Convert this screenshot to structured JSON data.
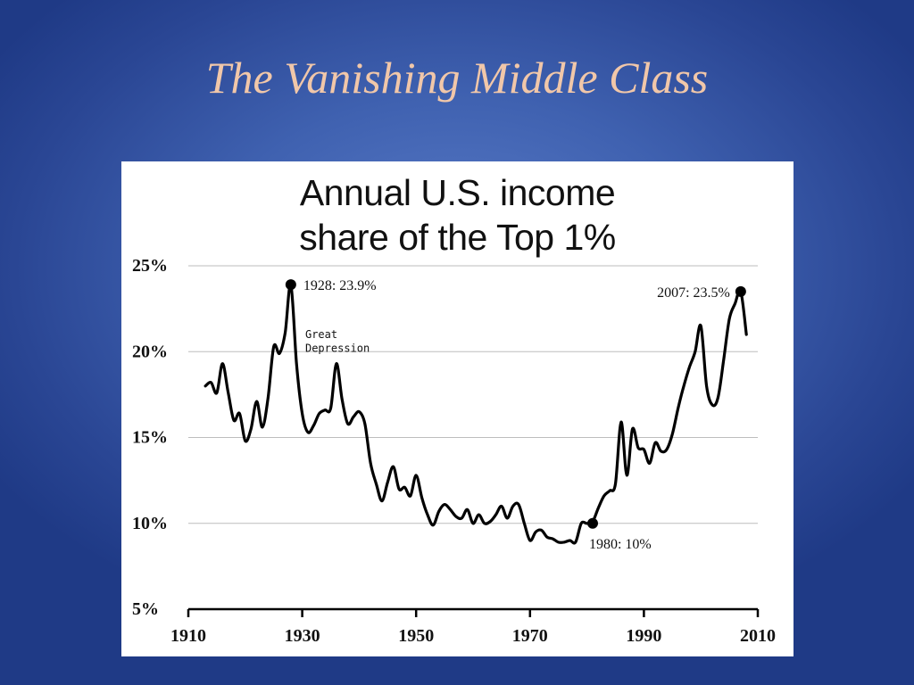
{
  "slide": {
    "title": "The Vanishing Middle Class"
  },
  "chart_data": {
    "type": "line",
    "title_lines": [
      "Annual U.S. income",
      "share of the Top 1%"
    ],
    "xlabel": "",
    "ylabel": "",
    "xlim": [
      1910,
      2010
    ],
    "ylim": [
      5,
      25
    ],
    "x_ticks": [
      {
        "value": 1910,
        "label": "1910"
      },
      {
        "value": 1930,
        "label": "1930"
      },
      {
        "value": 1950,
        "label": "1950"
      },
      {
        "value": 1970,
        "label": "1970"
      },
      {
        "value": 1990,
        "label": "1990"
      },
      {
        "value": 2010,
        "label": "2010"
      }
    ],
    "y_ticks": [
      {
        "value": 5,
        "label": "5%"
      },
      {
        "value": 10,
        "label": "10%"
      },
      {
        "value": 15,
        "label": "15%"
      },
      {
        "value": 20,
        "label": "20%"
      },
      {
        "value": 25,
        "label": "25%"
      }
    ],
    "grid": true,
    "series": [
      {
        "x": [
          1913,
          1914,
          1915,
          1916,
          1917,
          1918,
          1919,
          1920,
          1921,
          1922,
          1923,
          1924,
          1925,
          1926,
          1927,
          1928,
          1929,
          1930,
          1931,
          1932,
          1933,
          1934,
          1935,
          1936,
          1937,
          1938,
          1939,
          1940,
          1941,
          1942,
          1943,
          1944,
          1945,
          1946,
          1947,
          1948,
          1949,
          1950,
          1951,
          1952,
          1953,
          1954,
          1955,
          1956,
          1957,
          1958,
          1959,
          1960,
          1961,
          1962,
          1963,
          1964,
          1965,
          1966,
          1967,
          1968,
          1969,
          1970,
          1971,
          1972,
          1973,
          1974,
          1975,
          1976,
          1977,
          1978,
          1979,
          1980,
          1981,
          1982,
          1983,
          1984,
          1985,
          1986,
          1987,
          1988,
          1989,
          1990,
          1991,
          1992,
          1993,
          1994,
          1995,
          1996,
          1997,
          1998,
          1999,
          2000,
          2001,
          2002,
          2003,
          2004,
          2005,
          2006,
          2007,
          2008
        ],
        "values": [
          18.0,
          18.2,
          17.6,
          19.3,
          17.6,
          16.0,
          16.4,
          14.8,
          15.5,
          17.1,
          15.6,
          17.3,
          20.3,
          19.9,
          21.1,
          23.9,
          19.3,
          16.4,
          15.3,
          15.7,
          16.4,
          16.6,
          16.7,
          19.3,
          17.2,
          15.8,
          16.2,
          16.5,
          15.8,
          13.5,
          12.3,
          11.3,
          12.4,
          13.3,
          12.0,
          12.1,
          11.6,
          12.8,
          11.5,
          10.5,
          9.9,
          10.7,
          11.1,
          10.8,
          10.4,
          10.3,
          10.8,
          10.0,
          10.5,
          10.0,
          10.1,
          10.5,
          11.0,
          10.3,
          11.0,
          11.1,
          10.0,
          9.0,
          9.5,
          9.6,
          9.2,
          9.1,
          8.9,
          8.9,
          9.0,
          8.9,
          10.0,
          10.0,
          10.1,
          10.9,
          11.6,
          11.9,
          12.3,
          15.9,
          12.8,
          15.5,
          14.4,
          14.3,
          13.5,
          14.7,
          14.2,
          14.3,
          15.2,
          16.7,
          18.0,
          19.1,
          20.0,
          21.5,
          18.0,
          16.9,
          17.3,
          19.5,
          21.9,
          22.8,
          23.5,
          21.0
        ]
      }
    ],
    "annotations": [
      {
        "x": 1928,
        "y": 23.9,
        "text": "1928: 23.9%",
        "marker": true
      },
      {
        "x": 2007,
        "y": 23.5,
        "text": "2007: 23.5%",
        "marker": true
      },
      {
        "x": 1981,
        "y": 10.0,
        "text": "1980: 10%",
        "marker": true
      },
      {
        "x": 1931,
        "y": 21.0,
        "text": "Great",
        "marker": false
      },
      {
        "x": 1931,
        "y": 20.2,
        "text": "Depression",
        "marker": false
      }
    ],
    "colors": {
      "line": "#000000",
      "grid": "#bdbdbd",
      "panel": "#ffffff",
      "title_text": "#f1c7a9"
    }
  }
}
